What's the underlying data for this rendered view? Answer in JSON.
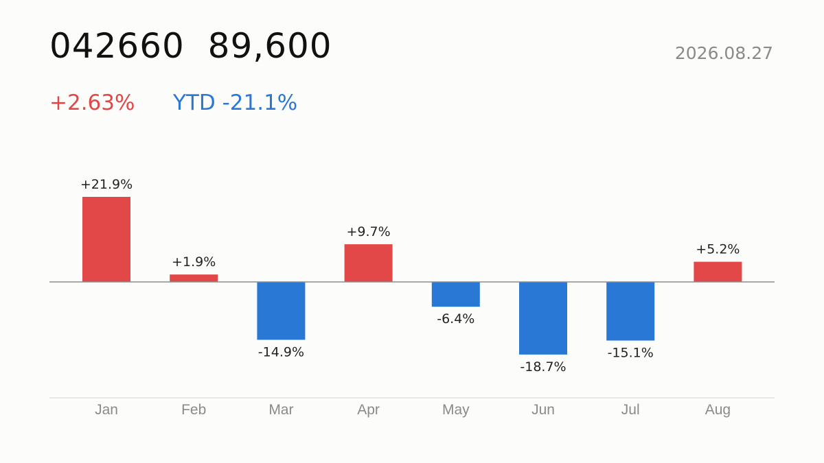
{
  "header": {
    "ticker": "042660",
    "price": "89,600",
    "date": "2026.08.27",
    "change": "+2.63%",
    "ytd": "YTD -21.1%"
  },
  "colors": {
    "up": "#e24848",
    "down": "#2a78d6"
  },
  "chart_data": {
    "type": "bar",
    "categories": [
      "Jan",
      "Feb",
      "Mar",
      "Apr",
      "May",
      "Jun",
      "Jul",
      "Aug"
    ],
    "values": [
      21.9,
      1.9,
      -14.9,
      9.7,
      -6.4,
      -18.7,
      -15.1,
      5.2
    ],
    "value_labels": [
      "+21.9%",
      "+1.9%",
      "-14.9%",
      "+9.7%",
      "-6.4%",
      "-18.7%",
      "-15.1%",
      "+5.2%"
    ],
    "ylim": [
      -21.9,
      21.9
    ],
    "grid": false,
    "legend": "none"
  }
}
